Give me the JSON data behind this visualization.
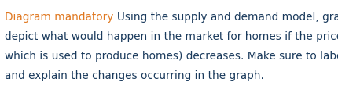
{
  "line1_part1": "Diagram mandatory ",
  "line1_part2": "Using the supply and demand model, graphically",
  "line2": "depict what would happen in the market for homes if the price of lumber (",
  "line3": "which is used to produce homes) decreases. Make sure to label the axes",
  "line4": "and explain the changes occurring in the graph.",
  "color_orange": "#e07820",
  "color_dark": "#1a3a5c",
  "background_color": "#ffffff",
  "font_size": 9.8,
  "figsize": [
    4.31,
    1.15
  ],
  "dpi": 100
}
